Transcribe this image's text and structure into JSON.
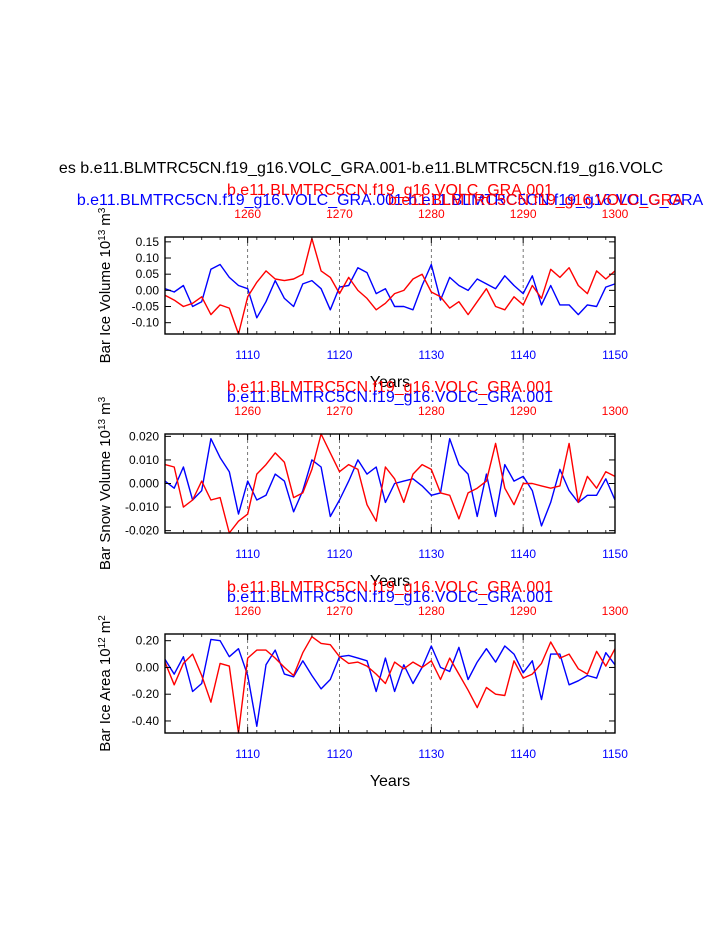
{
  "page_title": "es b.e11.BLMTRC5CN.f19_g16.VOLC_GRA.001-b.e11.BLMTRC5CN.f19_g16.VOLC",
  "colors": {
    "blue": "#0000ff",
    "red": "#ff0000",
    "axis": "#000000",
    "grid": "#555555"
  },
  "chart_data": [
    {
      "type": "line",
      "panel": "ice-volume",
      "title_red": "b.e11.BLMTRC5CN.f19_g16.VOLC_GRA.001",
      "title_blue": "b.e11.BLMTRC5CN.f19_g16.VOLC_GRA.001-b.e11.BLMTRC5CN.f19_g16.VOLC_GRA",
      "overlap_red": "b.e11.BLMTRC5CN.f19_g16.VOLC_GRA",
      "ylabel": "Bar Ice Volume 10",
      "ylabel_exp": "13",
      "ylabel_unit": "m",
      "ylabel_unit_exp": "3",
      "xlabel": "Years",
      "ylim": [
        -0.135,
        0.165
      ],
      "yticks": [
        0.15,
        0.1,
        0.05,
        0.0,
        -0.05,
        -0.1
      ],
      "ytick_labels": [
        "0.15",
        "0.10",
        "0.05",
        "0.00",
        "-0.05",
        "-0.10"
      ],
      "bottom_xlim": [
        1101,
        1150
      ],
      "bottom_xticks": [
        "1110",
        "1120",
        "1130",
        "1140",
        "1150"
      ],
      "top_xlim": [
        1251,
        1300
      ],
      "top_xticks": [
        "1260",
        "1270",
        "1280",
        "1290",
        "1300"
      ],
      "series": [
        {
          "name": "blue",
          "color": "#0000ff",
          "x_start": 1101,
          "values": [
            0.005,
            -0.005,
            0.015,
            -0.05,
            -0.035,
            0.065,
            0.08,
            0.04,
            0.015,
            0.005,
            -0.085,
            -0.035,
            0.03,
            -0.025,
            -0.05,
            0.02,
            0.03,
            0.005,
            -0.06,
            0.01,
            0.015,
            0.07,
            0.055,
            -0.01,
            0.005,
            -0.05,
            -0.05,
            -0.06,
            0.015,
            0.08,
            -0.03,
            0.04,
            0.015,
            0.0,
            0.035,
            0.02,
            0.005,
            0.045,
            0.015,
            -0.01,
            0.045,
            -0.045,
            0.015,
            -0.045,
            -0.045,
            -0.075,
            -0.045,
            -0.05,
            0.01,
            0.02
          ]
        },
        {
          "name": "red",
          "color": "#ff0000",
          "x_start": 1251,
          "values": [
            -0.015,
            -0.03,
            -0.05,
            -0.04,
            -0.02,
            -0.075,
            -0.045,
            -0.055,
            -0.135,
            -0.02,
            0.025,
            0.06,
            0.035,
            0.03,
            0.035,
            0.05,
            0.16,
            0.06,
            0.04,
            -0.01,
            0.04,
            0.0,
            -0.025,
            -0.06,
            -0.04,
            -0.01,
            0.0,
            0.035,
            0.05,
            -0.005,
            -0.02,
            -0.055,
            -0.035,
            -0.075,
            -0.035,
            0.005,
            -0.05,
            -0.06,
            -0.02,
            -0.045,
            0.015,
            -0.025,
            0.065,
            0.04,
            0.07,
            0.015,
            -0.01,
            0.06,
            0.035,
            0.06
          ]
        }
      ]
    },
    {
      "type": "line",
      "panel": "snow-volume",
      "title_red": "b.e11.BLMTRC5CN.f19_g16.VOLC_GRA.001",
      "title_blue": "b.e11.BLMTRC5CN.f19_g16.VOLC_GRA.001",
      "ylabel": "Bar Snow Volume 10",
      "ylabel_exp": "13",
      "ylabel_unit": "m",
      "ylabel_unit_exp": "3",
      "xlabel": "Years",
      "ylim": [
        -0.021,
        0.021
      ],
      "yticks": [
        0.02,
        0.01,
        0.0,
        -0.01,
        -0.02
      ],
      "ytick_labels": [
        "0.020",
        "0.010",
        "0.000",
        "-0.010",
        "-0.020"
      ],
      "bottom_xlim": [
        1101,
        1150
      ],
      "bottom_xticks": [
        "1110",
        "1120",
        "1130",
        "1140",
        "1150"
      ],
      "top_xlim": [
        1251,
        1300
      ],
      "top_xticks": [
        "1260",
        "1270",
        "1280",
        "1290",
        "1300"
      ],
      "series": [
        {
          "name": "blue",
          "color": "#0000ff",
          "x_start": 1101,
          "values": [
            0.001,
            -0.002,
            0.007,
            -0.007,
            -0.003,
            0.019,
            0.011,
            0.005,
            -0.013,
            0.001,
            -0.007,
            -0.005,
            0.004,
            0.001,
            -0.012,
            -0.003,
            0.01,
            0.007,
            -0.014,
            -0.007,
            0.001,
            0.01,
            0.004,
            0.007,
            -0.008,
            0.0,
            0.001,
            0.002,
            -0.001,
            -0.005,
            -0.004,
            0.019,
            0.008,
            0.004,
            -0.014,
            0.004,
            -0.014,
            0.008,
            0.001,
            0.003,
            -0.003,
            -0.018,
            -0.008,
            0.006,
            -0.003,
            -0.008,
            -0.005,
            -0.005,
            0.002,
            -0.007
          ]
        },
        {
          "name": "red",
          "color": "#ff0000",
          "x_start": 1251,
          "values": [
            0.008,
            0.007,
            -0.01,
            -0.007,
            0.001,
            -0.007,
            -0.006,
            -0.021,
            -0.016,
            -0.013,
            0.004,
            0.008,
            0.013,
            0.009,
            -0.006,
            -0.004,
            0.006,
            0.021,
            0.013,
            0.005,
            0.008,
            0.006,
            -0.009,
            -0.016,
            0.007,
            0.002,
            -0.008,
            0.004,
            0.008,
            0.006,
            -0.004,
            -0.005,
            -0.015,
            -0.004,
            -0.002,
            0.001,
            0.017,
            -0.002,
            -0.009,
            0.0,
            0.0,
            -0.001,
            -0.002,
            -0.001,
            0.017,
            -0.008,
            0.003,
            -0.002,
            0.005,
            0.003
          ]
        }
      ]
    },
    {
      "type": "line",
      "panel": "ice-area",
      "title_red": "b.e11.BLMTRC5CN.f19_g16.VOLC_GRA.001",
      "title_blue": "b.e11.BLMTRC5CN.f19_g16.VOLC_GRA.001",
      "ylabel": "Bar Ice Area 10",
      "ylabel_exp": "12",
      "ylabel_unit": "m",
      "ylabel_unit_exp": "2",
      "xlabel": "Years",
      "ylim": [
        -0.49,
        0.25
      ],
      "yticks": [
        0.2,
        0.0,
        -0.2,
        -0.4
      ],
      "ytick_labels": [
        "0.20",
        "0.00",
        "-0.20",
        "-0.40"
      ],
      "bottom_xlim": [
        1101,
        1150
      ],
      "bottom_xticks": [
        "1110",
        "1120",
        "1130",
        "1140",
        "1150"
      ],
      "top_xlim": [
        1251,
        1300
      ],
      "top_xticks": [
        "1260",
        "1270",
        "1280",
        "1290",
        "1300"
      ],
      "series": [
        {
          "name": "blue",
          "color": "#0000ff",
          "x_start": 1101,
          "values": [
            0.06,
            -0.05,
            0.08,
            -0.18,
            -0.12,
            0.21,
            0.2,
            0.08,
            0.14,
            -0.06,
            -0.44,
            0.02,
            0.13,
            -0.05,
            -0.07,
            0.05,
            -0.06,
            -0.16,
            -0.09,
            0.08,
            0.09,
            0.07,
            0.05,
            -0.18,
            0.07,
            -0.18,
            0.02,
            -0.12,
            0.0,
            0.16,
            0.0,
            -0.03,
            0.15,
            -0.09,
            0.04,
            0.14,
            0.04,
            0.16,
            0.1,
            -0.04,
            0.05,
            -0.24,
            0.1,
            0.1,
            -0.13,
            -0.1,
            -0.06,
            -0.08,
            0.11,
            0.02
          ]
        },
        {
          "name": "red",
          "color": "#ff0000",
          "x_start": 1251,
          "values": [
            0.04,
            -0.13,
            0.03,
            0.1,
            -0.06,
            -0.26,
            0.03,
            0.01,
            -0.49,
            0.07,
            0.13,
            0.13,
            0.07,
            0.0,
            -0.06,
            0.11,
            0.23,
            0.18,
            0.17,
            0.08,
            0.03,
            0.04,
            0.01,
            -0.05,
            -0.12,
            0.04,
            -0.01,
            0.04,
            0.0,
            0.05,
            -0.09,
            0.07,
            -0.05,
            -0.17,
            -0.3,
            -0.15,
            -0.2,
            -0.21,
            0.05,
            -0.08,
            -0.05,
            0.03,
            0.19,
            0.07,
            0.1,
            -0.01,
            -0.05,
            0.12,
            0.01,
            0.14
          ]
        }
      ]
    }
  ]
}
